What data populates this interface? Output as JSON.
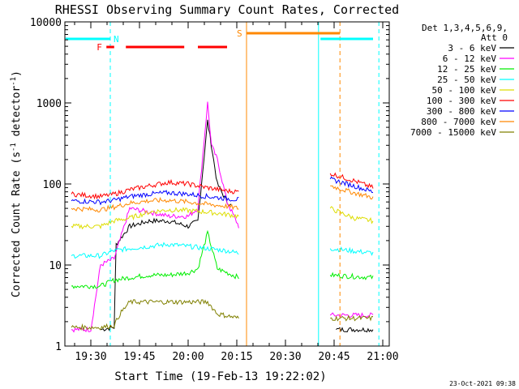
{
  "chart_data": {
    "type": "line",
    "title": "RHESSI Observing Summary Count Rates, Corrected",
    "xlabel": "Start Time (19-Feb-13 19:22:02)",
    "ylabel_main": "Corrected Count Rate (s",
    "ylabel_sup1": "-1",
    "ylabel_mid": " detector",
    "ylabel_sup2": "-1",
    "ylabel_end": ")",
    "xlim": [
      "19:22",
      "21:02"
    ],
    "ylim": [
      1,
      10000
    ],
    "yscale": "log",
    "x_ticks": [
      "19:30",
      "19:45",
      "20:00",
      "20:15",
      "20:30",
      "20:45",
      "21:00"
    ],
    "y_ticks": [
      "1",
      "10",
      "100",
      "1000",
      "10000"
    ],
    "legend_title1": "Det 1,3,4,5,6,9,",
    "legend_title2": "Att 0",
    "legend_position": "right",
    "footer": "23-Oct-2021 09:38",
    "series": [
      {
        "name": "3 - 6 keV",
        "color": "#000000",
        "values": [
          [
            19.55,
            1.6
          ],
          [
            19.62,
            1.7
          ],
          [
            19.63,
            18
          ],
          [
            19.7,
            30
          ],
          [
            19.8,
            35
          ],
          [
            19.9,
            35
          ],
          [
            20.0,
            30
          ],
          [
            20.05,
            35
          ],
          [
            20.1,
            600
          ],
          [
            20.15,
            100
          ],
          [
            20.2,
            60
          ],
          [
            20.22,
            55
          ],
          [
            20.76,
            1.6
          ],
          [
            20.95,
            1.6
          ]
        ]
      },
      {
        "name": "6 - 12 keV",
        "color": "#ff00ff",
        "values": [
          [
            19.4,
            1.6
          ],
          [
            19.5,
            1.6
          ],
          [
            19.55,
            10
          ],
          [
            19.62,
            12
          ],
          [
            19.7,
            50
          ],
          [
            19.8,
            45
          ],
          [
            19.9,
            40
          ],
          [
            20.0,
            40
          ],
          [
            20.05,
            50
          ],
          [
            20.1,
            1000
          ],
          [
            20.12,
            300
          ],
          [
            20.15,
            200
          ],
          [
            20.2,
            60
          ],
          [
            20.26,
            30
          ],
          [
            20.73,
            2.4
          ],
          [
            20.95,
            2.4
          ]
        ]
      },
      {
        "name": "12 - 25 keV",
        "color": "#00ee00",
        "values": [
          [
            19.4,
            5.5
          ],
          [
            19.55,
            5.5
          ],
          [
            19.62,
            6.5
          ],
          [
            19.7,
            7
          ],
          [
            19.8,
            7.5
          ],
          [
            19.9,
            7.5
          ],
          [
            20.0,
            8
          ],
          [
            20.05,
            9
          ],
          [
            20.1,
            25
          ],
          [
            20.15,
            9
          ],
          [
            20.26,
            7
          ],
          [
            20.73,
            7.5
          ],
          [
            20.95,
            7
          ]
        ]
      },
      {
        "name": "25 - 50 keV",
        "color": "#00ffff",
        "values": [
          [
            19.4,
            13
          ],
          [
            19.55,
            13
          ],
          [
            19.62,
            15
          ],
          [
            19.7,
            16
          ],
          [
            19.8,
            17
          ],
          [
            19.9,
            18
          ],
          [
            20.0,
            17
          ],
          [
            20.1,
            16
          ],
          [
            20.2,
            15
          ],
          [
            20.26,
            14
          ],
          [
            20.73,
            16
          ],
          [
            20.95,
            14
          ]
        ]
      },
      {
        "name": "50 - 100 keV",
        "color": "#dddd00",
        "values": [
          [
            19.4,
            30
          ],
          [
            19.55,
            30
          ],
          [
            19.62,
            35
          ],
          [
            19.7,
            38
          ],
          [
            19.8,
            45
          ],
          [
            19.9,
            48
          ],
          [
            20.0,
            47
          ],
          [
            20.1,
            45
          ],
          [
            20.2,
            42
          ],
          [
            20.26,
            40
          ],
          [
            20.73,
            50
          ],
          [
            20.85,
            38
          ],
          [
            20.95,
            35
          ]
        ]
      },
      {
        "name": "100 - 300 keV",
        "color": "#ff0000",
        "values": [
          [
            19.4,
            75
          ],
          [
            19.55,
            70
          ],
          [
            19.62,
            75
          ],
          [
            19.7,
            85
          ],
          [
            19.8,
            95
          ],
          [
            19.9,
            105
          ],
          [
            20.0,
            100
          ],
          [
            20.1,
            90
          ],
          [
            20.2,
            82
          ],
          [
            20.26,
            80
          ],
          [
            20.73,
            135
          ],
          [
            20.85,
            110
          ],
          [
            20.95,
            90
          ]
        ]
      },
      {
        "name": "300 - 800 keV",
        "color": "#0000ff",
        "values": [
          [
            19.4,
            62
          ],
          [
            19.55,
            60
          ],
          [
            19.62,
            63
          ],
          [
            19.7,
            70
          ],
          [
            19.8,
            75
          ],
          [
            19.9,
            78
          ],
          [
            20.0,
            75
          ],
          [
            20.1,
            70
          ],
          [
            20.2,
            66
          ],
          [
            20.26,
            64
          ],
          [
            20.73,
            115
          ],
          [
            20.85,
            95
          ],
          [
            20.95,
            80
          ]
        ]
      },
      {
        "name": "800 - 7000 keV",
        "color": "#ff8800",
        "values": [
          [
            19.4,
            50
          ],
          [
            19.55,
            48
          ],
          [
            19.62,
            52
          ],
          [
            19.7,
            58
          ],
          [
            19.8,
            62
          ],
          [
            19.9,
            63
          ],
          [
            20.0,
            60
          ],
          [
            20.1,
            56
          ],
          [
            20.2,
            53
          ],
          [
            20.26,
            50
          ],
          [
            20.73,
            95
          ],
          [
            20.85,
            78
          ],
          [
            20.95,
            68
          ]
        ]
      },
      {
        "name": "7000 - 15000 keV",
        "color": "#808000",
        "values": [
          [
            19.4,
            1.7
          ],
          [
            19.55,
            1.7
          ],
          [
            19.62,
            1.8
          ],
          [
            19.65,
            2.5
          ],
          [
            19.7,
            3.5
          ],
          [
            19.8,
            3.5
          ],
          [
            19.9,
            3.5
          ],
          [
            20.0,
            3.5
          ],
          [
            20.1,
            3.5
          ],
          [
            20.15,
            2.5
          ],
          [
            20.26,
            2.2
          ],
          [
            20.73,
            2.2
          ],
          [
            20.95,
            2.2
          ]
        ]
      }
    ],
    "flag_markers": [
      {
        "label": "N",
        "color": "#00ffff",
        "segments": [
          [
            19.37,
            19.6
          ],
          [
            20.68,
            20.95
          ]
        ]
      },
      {
        "label": "S",
        "color": "#ff8800",
        "segments": [
          [
            20.3,
            20.78
          ]
        ]
      },
      {
        "label": "F",
        "color": "#ff0000",
        "segments": [
          [
            19.58,
            19.62
          ],
          [
            19.68,
            19.98
          ],
          [
            20.05,
            20.2
          ]
        ]
      }
    ],
    "vertical_lines": [
      {
        "x": 19.6,
        "color": "#00ffff",
        "style": "dashed"
      },
      {
        "x": 20.3,
        "color": "#ff8800",
        "style": "solid"
      },
      {
        "x": 20.67,
        "color": "#00ffff",
        "style": "solid"
      },
      {
        "x": 20.78,
        "color": "#ff8800",
        "style": "dashed"
      },
      {
        "x": 20.98,
        "color": "#00ffff",
        "style": "dashed"
      }
    ]
  }
}
